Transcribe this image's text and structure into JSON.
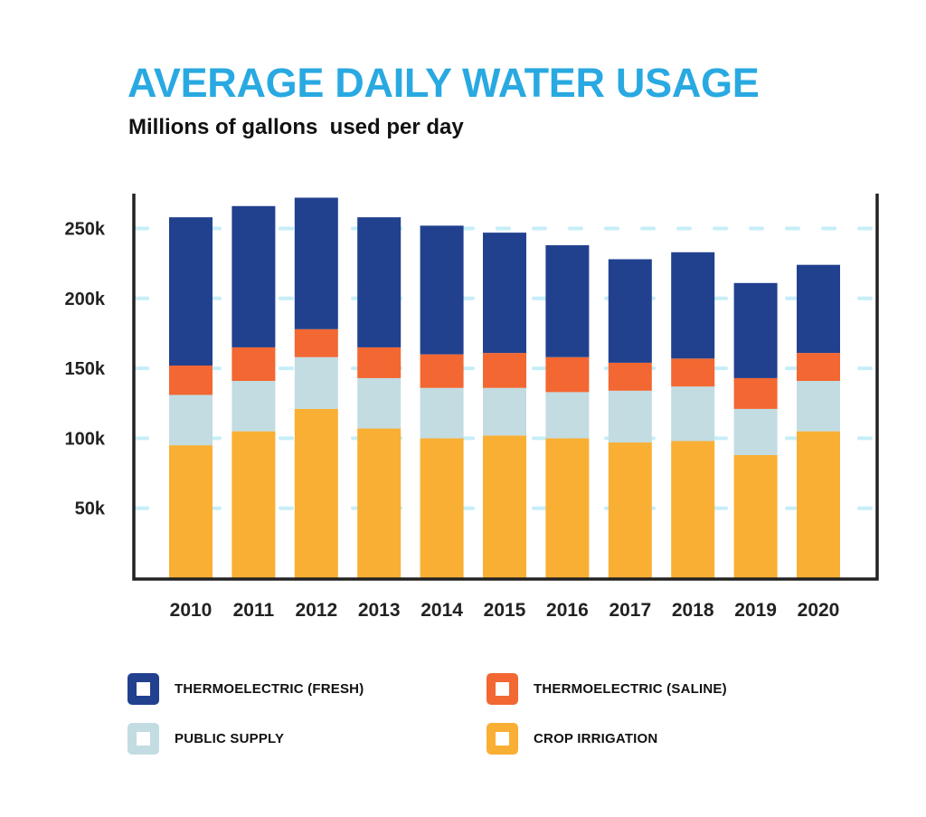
{
  "chart_data": {
    "type": "bar",
    "stacked": true,
    "title": "AVERAGE DAILY WATER USAGE",
    "subtitle": "Millions of gallons  used per day",
    "xlabel": "",
    "ylabel": "",
    "categories": [
      "2010",
      "2011",
      "2012",
      "2013",
      "2014",
      "2015",
      "2016",
      "2017",
      "2018",
      "2019",
      "2020"
    ],
    "ylim": [
      0,
      275
    ],
    "yticks": [
      50,
      100,
      150,
      200,
      250
    ],
    "ytick_labels": [
      "50k",
      "100k",
      "150k",
      "200k",
      "250k"
    ],
    "grid": "horizontal dashed",
    "legend_position": "bottom",
    "series": [
      {
        "name": "CROP IRRIGATION",
        "color": "#F9AF34",
        "values": [
          95,
          105,
          121,
          107,
          100,
          102,
          100,
          97,
          98,
          88,
          105
        ]
      },
      {
        "name": "PUBLIC SUPPLY",
        "color": "#C2DCE2",
        "values": [
          36,
          36,
          37,
          36,
          36,
          34,
          33,
          37,
          39,
          33,
          36
        ]
      },
      {
        "name": "THERMOELECTRIC (SALINE)",
        "color": "#F26732",
        "values": [
          21,
          24,
          20,
          22,
          24,
          25,
          25,
          20,
          20,
          22,
          20
        ]
      },
      {
        "name": "THERMOELECTRIC (FRESH)",
        "color": "#21418F",
        "values": [
          106,
          101,
          94,
          93,
          92,
          86,
          80,
          74,
          76,
          68,
          63
        ]
      }
    ]
  },
  "legend": [
    {
      "label": "THERMOELECTRIC (FRESH)",
      "color": "#21418F"
    },
    {
      "label": "THERMOELECTRIC (SALINE)",
      "color": "#F26732"
    },
    {
      "label": "PUBLIC SUPPLY",
      "color": "#C2DCE2"
    },
    {
      "label": "CROP IRRIGATION",
      "color": "#F9AF34"
    }
  ],
  "colors": {
    "title": "#29A9E1",
    "gridline": "#C6EEF8",
    "axis": "#222222"
  }
}
